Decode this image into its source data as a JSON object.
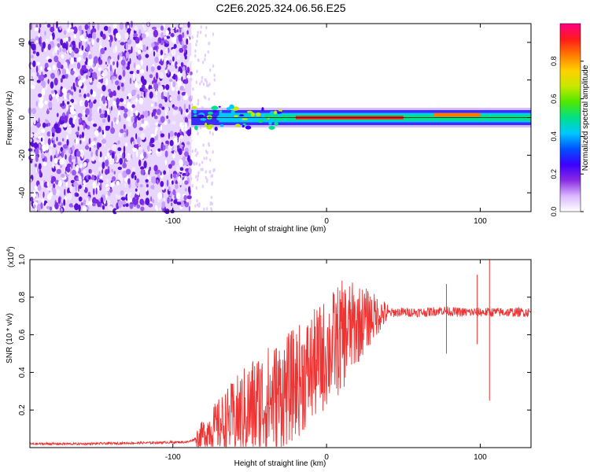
{
  "title": "C2E6.2025.324.06.56.E25",
  "chart_data": [
    {
      "type": "heatmap",
      "name": "spectrogram",
      "xlabel": "Height of straight line (km)",
      "ylabel": "Frequency (Hz)",
      "xlim": [
        -193,
        133
      ],
      "ylim": [
        -50,
        50
      ],
      "xticks": [
        -100,
        0,
        100
      ],
      "xtick_labels": [
        "-100",
        "0",
        "100"
      ],
      "yticks": [
        -40,
        -20,
        0,
        20,
        40
      ],
      "ytick_labels": [
        "-40",
        "-20",
        "0",
        "20",
        "40"
      ],
      "noise_region_km": [
        -193,
        -88
      ],
      "signal_band_hz": [
        -4,
        4
      ],
      "colorbar": {
        "label": "Normalized spectral amplitude",
        "range": [
          0.0,
          1.0
        ],
        "ticks": [
          0.0,
          0.2,
          0.4,
          0.6,
          0.8
        ],
        "tick_labels": [
          "0.0",
          "0.2",
          "0.4",
          "0.6",
          "0.8"
        ],
        "colors": [
          "#ffffff",
          "#d9b8ff",
          "#8a2be2",
          "#3c00ff",
          "#0050ff",
          "#00c8ff",
          "#00e08a",
          "#50e800",
          "#c8e800",
          "#ffd000",
          "#ff7a00",
          "#ff1a1a",
          "#ff0088"
        ]
      }
    },
    {
      "type": "line",
      "name": "snr",
      "xlabel": "Height of straight line (km)",
      "ylabel": "SNR (10 * v/v)",
      "scale_label": "(x10",
      "scale_exp": "4",
      "scale_close": ")",
      "xlim": [
        -193,
        133
      ],
      "ylim": [
        0,
        1.0
      ],
      "xticks": [
        -100,
        0,
        100
      ],
      "xtick_labels": [
        "-100",
        "0",
        "100"
      ],
      "yticks": [
        0.2,
        0.4,
        0.6,
        0.8,
        1.0
      ],
      "ytick_labels": [
        "0.2",
        "0.4",
        "0.6",
        "0.8",
        "1.0"
      ],
      "color": "#ee3333",
      "series": [
        {
          "name": "SNR",
          "x": [
            -193,
            -160,
            -120,
            -90,
            -82,
            -75,
            -65,
            -55,
            -45,
            -35,
            -25,
            -15,
            -5,
            5,
            15,
            25,
            35,
            45,
            55,
            65,
            75,
            85,
            95,
            105,
            115,
            125,
            133
          ],
          "y": [
            0.02,
            0.02,
            0.025,
            0.03,
            0.06,
            0.1,
            0.14,
            0.18,
            0.22,
            0.26,
            0.31,
            0.38,
            0.46,
            0.55,
            0.63,
            0.68,
            0.71,
            0.72,
            0.72,
            0.72,
            0.73,
            0.72,
            0.72,
            0.72,
            0.72,
            0.72,
            0.72
          ]
        }
      ],
      "spikes": [
        {
          "x": 78,
          "y_max": 0.87,
          "y_min": 0.5
        },
        {
          "x": 98,
          "y_max": 0.92,
          "y_min": 0.55
        },
        {
          "x": 106,
          "y_max": 1.0,
          "y_min": 0.25
        }
      ]
    }
  ]
}
